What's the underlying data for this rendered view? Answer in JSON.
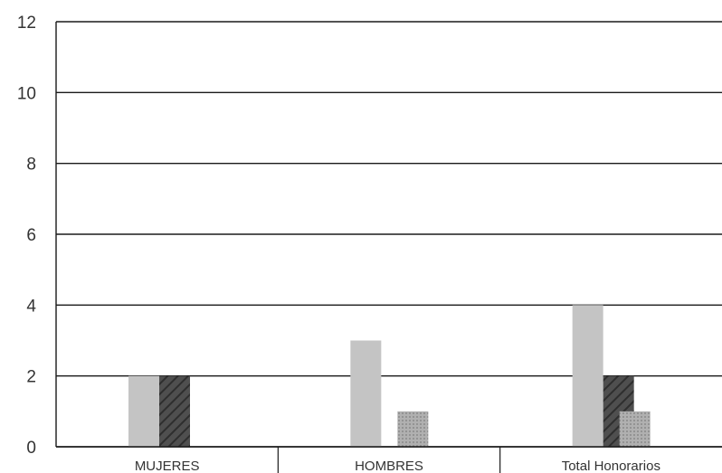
{
  "chart_data": {
    "type": "bar",
    "categories": [
      "MUJERES",
      "HOMBRES",
      "Total Honorarios"
    ],
    "series": [
      {
        "values": [
          2,
          3,
          4
        ],
        "color": "#c4c4c4"
      },
      {
        "values": [
          2,
          0,
          2
        ],
        "color": "#4f4f4f"
      },
      {
        "values": [
          0,
          1,
          1
        ],
        "color": "#a9a9a9"
      }
    ],
    "ylim": [
      0,
      12
    ],
    "yticks": [
      "0",
      "2",
      "4",
      "6",
      "8",
      "10",
      "12"
    ],
    "grid": true,
    "title": "",
    "xlabel": "",
    "ylabel": ""
  }
}
